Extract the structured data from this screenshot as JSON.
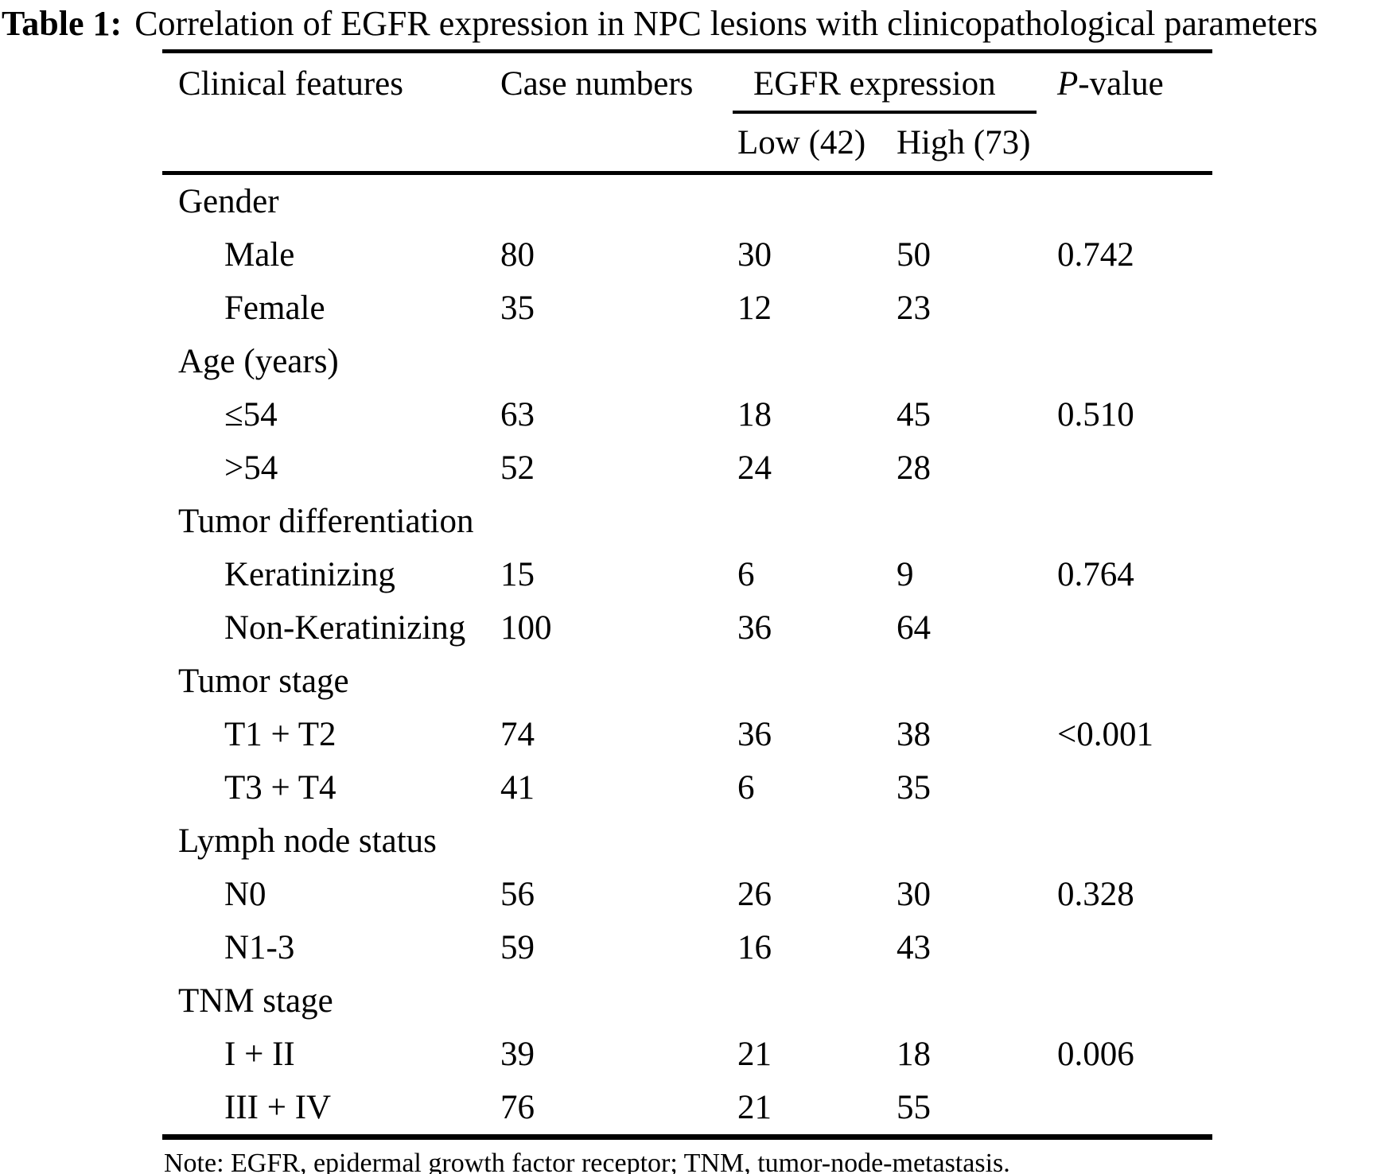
{
  "title": {
    "label": "Table 1:",
    "text": "Correlation of EGFR expression in NPC lesions with clinicopathological parameters"
  },
  "header": {
    "clinical_features": "Clinical features",
    "case_numbers": "Case numbers",
    "egfr_expression": "EGFR expression",
    "p_italic": "P",
    "p_rest": "-value",
    "sub_low": "Low (42)",
    "sub_high": "High (73)"
  },
  "sections": [
    {
      "label": "Gender",
      "rows": [
        {
          "feature": "Male",
          "cases": "80",
          "low": "30",
          "high": "50",
          "p": "0.742"
        },
        {
          "feature": "Female",
          "cases": "35",
          "low": "12",
          "high": "23",
          "p": ""
        }
      ]
    },
    {
      "label": "Age (years)",
      "rows": [
        {
          "feature": "≤54",
          "cases": "63",
          "low": "18",
          "high": "45",
          "p": "0.510"
        },
        {
          "feature": ">54",
          "cases": "52",
          "low": "24",
          "high": "28",
          "p": ""
        }
      ]
    },
    {
      "label": "Tumor differentiation",
      "rows": [
        {
          "feature": "Keratinizing",
          "cases": "15",
          "low": "6",
          "high": "9",
          "p": "0.764"
        },
        {
          "feature": "Non-Keratinizing",
          "cases": "100",
          "low": "36",
          "high": "64",
          "p": ""
        }
      ]
    },
    {
      "label": "Tumor stage",
      "rows": [
        {
          "feature": "T1 + T2",
          "cases": "74",
          "low": "36",
          "high": "38",
          "p": "<0.001"
        },
        {
          "feature": "T3 + T4",
          "cases": "41",
          "low": "6",
          "high": "35",
          "p": ""
        }
      ]
    },
    {
      "label": "Lymph node status",
      "rows": [
        {
          "feature": "N0",
          "cases": "56",
          "low": "26",
          "high": "30",
          "p": "0.328"
        },
        {
          "feature": "N1-3",
          "cases": "59",
          "low": "16",
          "high": "43",
          "p": ""
        }
      ]
    },
    {
      "label": "TNM stage",
      "rows": [
        {
          "feature": "I + II",
          "cases": "39",
          "low": "21",
          "high": "18",
          "p": "0.006"
        },
        {
          "feature": "III + IV",
          "cases": "76",
          "low": "21",
          "high": "55",
          "p": ""
        }
      ]
    }
  ],
  "note": "Note: EGFR, epidermal growth factor receptor; TNM, tumor-node-metastasis."
}
